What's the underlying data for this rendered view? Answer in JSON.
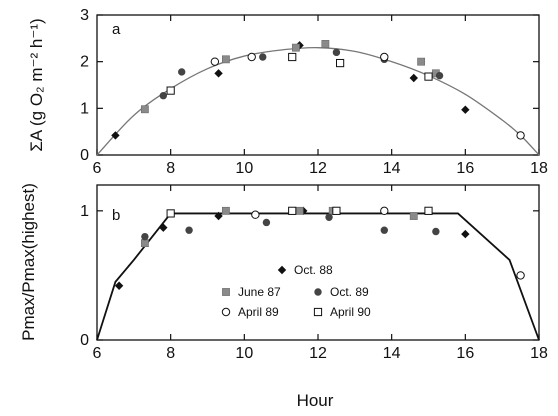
{
  "chart_data": [
    {
      "panel": "a",
      "type": "scatter",
      "ylabel": "ΣA (g O₂ m⁻² h⁻¹)",
      "xlabel": "",
      "xlim": [
        6,
        18
      ],
      "ylim": [
        0,
        3
      ],
      "xticks": [
        6,
        8,
        10,
        12,
        14,
        16,
        18
      ],
      "yticks": [
        0,
        1,
        2,
        3
      ],
      "grid": false,
      "fit_line": {
        "type": "curve",
        "points": [
          [
            6.0,
            0.0
          ],
          [
            7.0,
            0.85
          ],
          [
            8.0,
            1.42
          ],
          [
            9.0,
            1.85
          ],
          [
            10.0,
            2.12
          ],
          [
            11.0,
            2.25
          ],
          [
            12.0,
            2.3
          ],
          [
            13.0,
            2.22
          ],
          [
            14.0,
            2.0
          ],
          [
            15.0,
            1.7
          ],
          [
            16.0,
            1.3
          ],
          [
            17.0,
            0.75
          ],
          [
            17.5,
            0.42
          ],
          [
            18.0,
            0.0
          ]
        ]
      },
      "series": [
        {
          "name": "Oct. 88",
          "marker": "diamond",
          "points": [
            [
              6.5,
              0.42
            ],
            [
              9.3,
              1.75
            ],
            [
              11.5,
              2.35
            ],
            [
              14.6,
              1.65
            ],
            [
              16.0,
              0.97
            ]
          ]
        },
        {
          "name": "June 87",
          "marker": "gray-square",
          "points": [
            [
              7.3,
              0.98
            ],
            [
              9.5,
              2.05
            ],
            [
              11.4,
              2.3
            ],
            [
              12.2,
              2.38
            ],
            [
              14.8,
              2.0
            ],
            [
              15.2,
              1.75
            ]
          ]
        },
        {
          "name": "Oct. 89",
          "marker": "filled-circle",
          "points": [
            [
              7.8,
              1.27
            ],
            [
              8.3,
              1.78
            ],
            [
              10.5,
              2.1
            ],
            [
              12.5,
              2.2
            ],
            [
              13.8,
              2.05
            ],
            [
              15.3,
              1.7
            ]
          ]
        },
        {
          "name": "April 89",
          "marker": "open-circle",
          "points": [
            [
              9.2,
              2.0
            ],
            [
              10.2,
              2.1
            ],
            [
              13.8,
              2.1
            ],
            [
              17.5,
              0.42
            ]
          ]
        },
        {
          "name": "April 90",
          "marker": "open-square",
          "points": [
            [
              8.0,
              1.38
            ],
            [
              11.3,
              2.1
            ],
            [
              12.6,
              1.97
            ],
            [
              15.0,
              1.68
            ]
          ]
        }
      ]
    },
    {
      "panel": "b",
      "type": "scatter",
      "ylabel": "Pmax/Pmax(highest)",
      "xlabel": "Hour",
      "xlim": [
        6,
        18
      ],
      "ylim": [
        0,
        1.2
      ],
      "xticks": [
        6,
        8,
        10,
        12,
        14,
        16,
        18
      ],
      "yticks": [
        0,
        1
      ],
      "grid": false,
      "fit_line": {
        "type": "polyline",
        "points": [
          [
            6.0,
            0.0
          ],
          [
            6.5,
            0.45
          ],
          [
            7.0,
            0.62
          ],
          [
            8.0,
            0.98
          ],
          [
            15.8,
            0.98
          ],
          [
            17.2,
            0.62
          ],
          [
            18.0,
            0.0
          ]
        ]
      },
      "legend_position": "center",
      "series": [
        {
          "name": "Oct. 88",
          "marker": "diamond",
          "points": [
            [
              6.6,
              0.42
            ],
            [
              7.8,
              0.87
            ],
            [
              9.3,
              0.96
            ],
            [
              11.6,
              1.0
            ],
            [
              16.0,
              0.82
            ]
          ]
        },
        {
          "name": "June 87",
          "marker": "gray-square",
          "points": [
            [
              7.3,
              0.75
            ],
            [
              9.5,
              1.0
            ],
            [
              11.5,
              1.0
            ],
            [
              12.4,
              1.0
            ],
            [
              14.6,
              0.96
            ]
          ]
        },
        {
          "name": "Oct. 89",
          "marker": "filled-circle",
          "points": [
            [
              7.3,
              0.8
            ],
            [
              8.5,
              0.85
            ],
            [
              10.6,
              0.91
            ],
            [
              12.3,
              0.95
            ],
            [
              13.8,
              0.85
            ],
            [
              15.2,
              0.84
            ]
          ]
        },
        {
          "name": "April 89",
          "marker": "open-circle",
          "points": [
            [
              10.3,
              0.97
            ],
            [
              13.8,
              1.0
            ],
            [
              17.5,
              0.5
            ]
          ]
        },
        {
          "name": "April 90",
          "marker": "open-square",
          "points": [
            [
              8.0,
              0.98
            ],
            [
              11.3,
              1.0
            ],
            [
              12.5,
              1.0
            ],
            [
              15.0,
              1.0
            ]
          ]
        }
      ]
    }
  ],
  "panel_letters": [
    "a",
    "b"
  ],
  "legend": {
    "items": [
      "Oct. 88",
      "June 87",
      "Oct. 89",
      "April 89",
      "April 90"
    ]
  }
}
